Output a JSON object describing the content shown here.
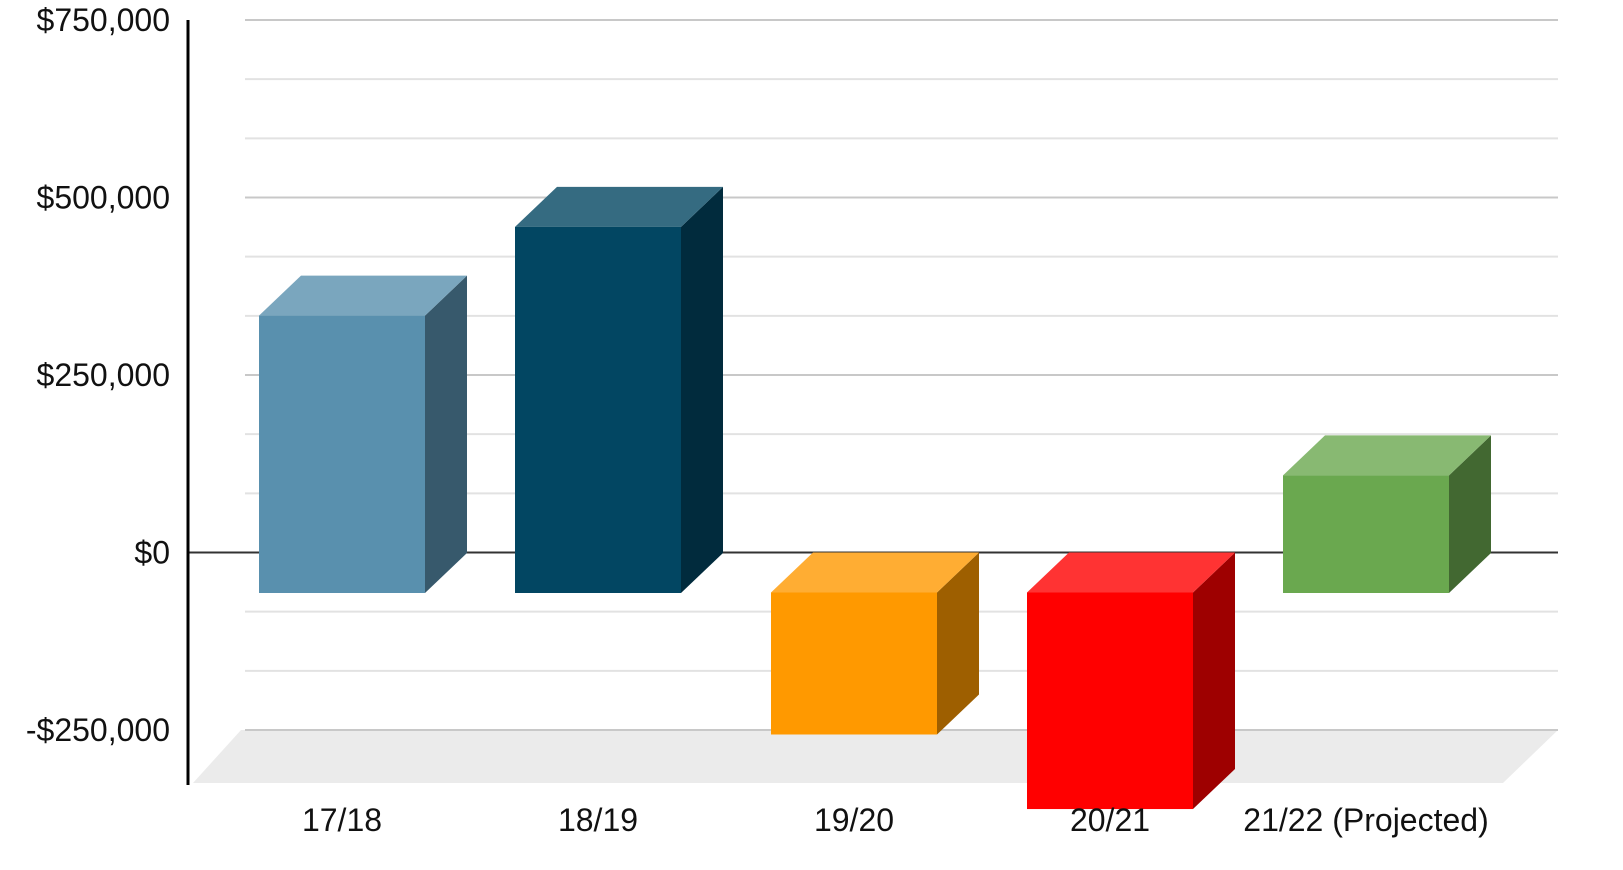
{
  "chart_data": {
    "type": "bar",
    "style": "3d",
    "categories": [
      "17/18",
      "18/19",
      "19/20",
      "20/21",
      "21/22 (Projected)"
    ],
    "values": [
      390000,
      515000,
      -200000,
      -305000,
      165000
    ],
    "colors": [
      "#5990AE",
      "#024662",
      "#FF9900",
      "#FF0000",
      "#6AA84F"
    ],
    "y_ticks": [
      {
        "value": 750000,
        "label": "$750,000"
      },
      {
        "value": 500000,
        "label": "$500,000"
      },
      {
        "value": 250000,
        "label": "$250,000"
      },
      {
        "value": 0,
        "label": "$0"
      },
      {
        "value": -250000,
        "label": "-$250,000"
      }
    ],
    "ylim": [
      -250000,
      750000
    ],
    "minor_gridlines": true,
    "grid": true,
    "legend": "none",
    "title": "",
    "xlabel": "",
    "ylabel": ""
  }
}
